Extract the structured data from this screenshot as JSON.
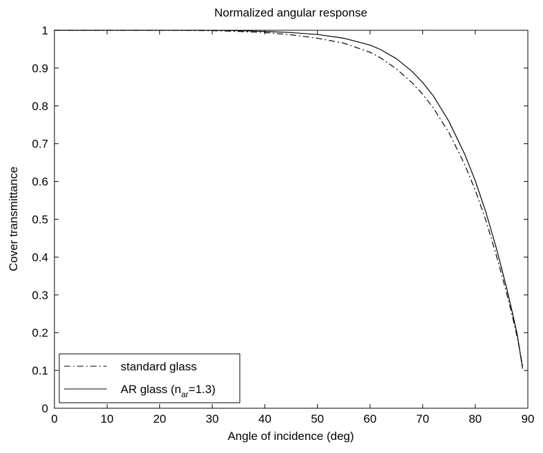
{
  "chart_data": {
    "type": "line",
    "title": "Normalized angular response",
    "xlabel": "Angle of incidence (deg)",
    "ylabel": "Cover transmittance",
    "xlim": [
      0,
      90
    ],
    "ylim": [
      0,
      1
    ],
    "xticks": [
      0,
      10,
      20,
      30,
      40,
      50,
      60,
      70,
      80,
      90
    ],
    "yticks": [
      0,
      0.1,
      0.2,
      0.3,
      0.4,
      0.5,
      0.6,
      0.7,
      0.8,
      0.9,
      1
    ],
    "grid": false,
    "legend_position": "bottom-left",
    "series": [
      {
        "name": "standard glass",
        "line_style": "dash-dot",
        "color": "#000000",
        "x": [
          0,
          10,
          20,
          30,
          35,
          40,
          45,
          50,
          55,
          60,
          62,
          65,
          68,
          70,
          72,
          75,
          78,
          80,
          82,
          84,
          85,
          86,
          87,
          88,
          89
        ],
        "y": [
          1.0,
          1.0,
          1.0,
          0.999,
          0.997,
          0.994,
          0.988,
          0.979,
          0.966,
          0.942,
          0.927,
          0.898,
          0.861,
          0.831,
          0.795,
          0.729,
          0.645,
          0.577,
          0.498,
          0.405,
          0.355,
          0.303,
          0.247,
          0.187,
          0.112
        ]
      },
      {
        "name": "AR glass (n_ar=1.3)",
        "legend_main": "AR glass (n",
        "legend_sub": "ar",
        "legend_tail": "=1.3)",
        "line_style": "solid",
        "color": "#000000",
        "x": [
          0,
          10,
          20,
          30,
          35,
          40,
          45,
          50,
          55,
          60,
          62,
          65,
          68,
          70,
          72,
          75,
          78,
          80,
          82,
          84,
          85,
          86,
          87,
          88,
          89
        ],
        "y": [
          1.0,
          1.0,
          1.0,
          1.0,
          0.999,
          0.997,
          0.994,
          0.989,
          0.979,
          0.961,
          0.949,
          0.925,
          0.891,
          0.862,
          0.827,
          0.759,
          0.672,
          0.602,
          0.52,
          0.424,
          0.371,
          0.316,
          0.257,
          0.194,
          0.105
        ]
      }
    ]
  }
}
